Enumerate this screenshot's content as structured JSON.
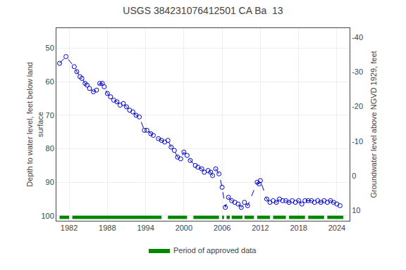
{
  "chart_data": {
    "type": "line",
    "title": "USGS 384231076412501 CA Ba  13",
    "xlabel": null,
    "ylabel": "Depth to water level, feet below land\nsurface",
    "y2label": "Groundwater level above NGVD 1929, feet",
    "xlim": [
      1980.0,
      2026.0
    ],
    "xticks": [
      1982,
      1988,
      1994,
      2000,
      2006,
      2012,
      2018,
      2024
    ],
    "ylim": [
      101.5,
      44.0
    ],
    "yticks": [
      50,
      60,
      70,
      80,
      90,
      100
    ],
    "y2lim": [
      13.0,
      -42.6
    ],
    "y2ticks": [
      10,
      0,
      -10,
      -20,
      -30,
      -40
    ],
    "grid": true,
    "legend": "bottom",
    "series": [
      {
        "type": "line",
        "color": "#0000cc",
        "line_style": "dashed",
        "marker": "open circle",
        "x": [
          1980.5,
          1981.5,
          1982.8,
          1983.2,
          1983.7,
          1984.0,
          1984.5,
          1984.8,
          1985.2,
          1985.8,
          1986.3,
          1986.8,
          1987.2,
          1987.5,
          1988.0,
          1988.5,
          1989.0,
          1989.5,
          1990.0,
          1990.5,
          1991.0,
          1991.5,
          1992.0,
          1992.5,
          1993.0,
          1993.8,
          1994.2,
          1994.8,
          1995.2,
          1996.0,
          1996.5,
          1997.0,
          1997.5,
          1998.0,
          1998.5,
          1999.0,
          1999.5,
          2000.0,
          2000.5,
          2001.0,
          2001.8,
          2002.2,
          2002.8,
          2003.2,
          2003.8,
          2004.2,
          2004.5,
          2005.0,
          2005.5,
          2006.0,
          2006.5,
          2007.0,
          2007.5,
          2008.0,
          2008.5,
          2009.0,
          2009.5,
          2010.0,
          2011.5,
          2011.8,
          2012.0,
          2013.0,
          2013.5,
          2014.0,
          2014.5,
          2015.0,
          2015.5,
          2016.0,
          2016.5,
          2017.0,
          2017.5,
          2018.0,
          2018.5,
          2019.0,
          2019.5,
          2020.0,
          2020.5,
          2021.0,
          2021.5,
          2022.0,
          2022.5,
          2023.0,
          2023.5,
          2024.0,
          2024.5
        ],
        "values": [
          54.5,
          52.5,
          55.5,
          57.0,
          58.5,
          59.0,
          60.5,
          61.0,
          62.0,
          63.0,
          62.5,
          60.5,
          60.5,
          61.5,
          63.5,
          64.5,
          65.5,
          66.0,
          67.0,
          66.5,
          67.5,
          68.5,
          69.0,
          70.0,
          70.5,
          74.5,
          74.5,
          75.5,
          76.0,
          77.0,
          77.5,
          78.0,
          77.5,
          79.5,
          80.5,
          82.5,
          83.0,
          81.0,
          82.0,
          83.5,
          85.0,
          85.5,
          86.0,
          87.0,
          86.5,
          87.0,
          88.0,
          86.0,
          87.5,
          91.5,
          97.5,
          94.5,
          95.5,
          96.0,
          96.5,
          97.5,
          96.0,
          97.0,
          90.0,
          90.5,
          89.5,
          95.0,
          96.0,
          95.5,
          96.0,
          95.0,
          95.5,
          95.5,
          96.0,
          95.5,
          96.0,
          95.5,
          96.5,
          95.5,
          95.5,
          95.5,
          96.0,
          95.5,
          96.0,
          95.5,
          96.0,
          95.5,
          96.0,
          96.5,
          97.0
        ]
      },
      {
        "type": "segments",
        "name": "Period of approved data",
        "color": "#008800",
        "y": [
          100.0,
          101.0
        ],
        "segments": [
          [
            1980.5,
            1982.0
          ],
          [
            1982.5,
            1996.5
          ],
          [
            1997.5,
            2000.5
          ],
          [
            2001.5,
            2005.5
          ],
          [
            2006.0,
            2006.3
          ],
          [
            2006.7,
            2007.2
          ],
          [
            2007.5,
            2009.2
          ],
          [
            2009.5,
            2011.0
          ],
          [
            2011.5,
            2013.5
          ],
          [
            2014.0,
            2016.0
          ],
          [
            2016.5,
            2019.0
          ],
          [
            2019.5,
            2022.0
          ],
          [
            2022.5,
            2025.0
          ]
        ]
      }
    ]
  }
}
